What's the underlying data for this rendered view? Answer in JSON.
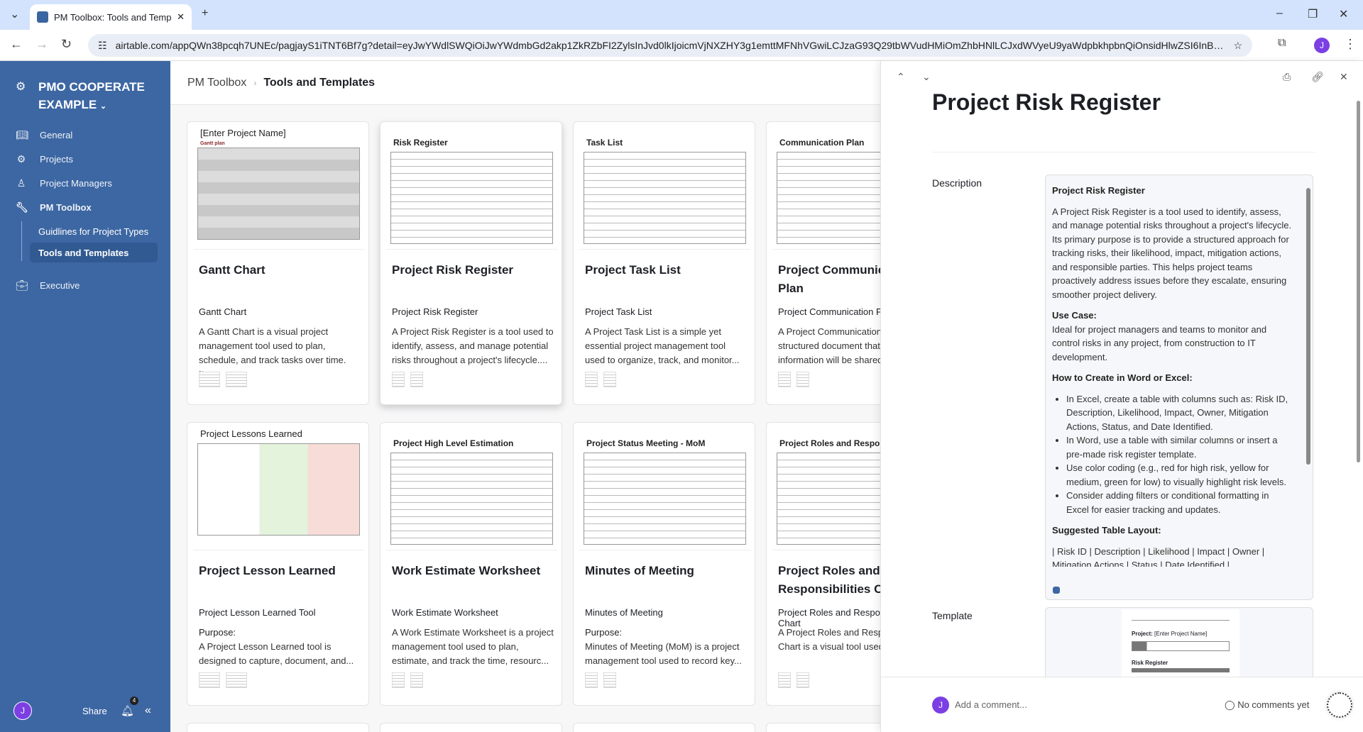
{
  "browser": {
    "tab_title": "PM Toolbox: Tools and Templat",
    "url": "airtable.com/appQWn38pcqh7UNEc/pagjayS1iTNT6Bf7g?detail=eyJwYWdlSWQiOiJwYWdmbGd2akp1ZkRZbFI2ZylsInJvd0lkIjoicmVjNXZHY3g1emttMFNhVGwiLCJzaG93Q29tbWVudHMiOmZhbHNlLCJxdWVyeU9yaWdpbkhpbnQiOnsidHlwZSI6InBhZ2VFbGV...",
    "profile_initial": "J"
  },
  "sidebar": {
    "workspace": "PMO COOPERATE EXAMPLE",
    "items": [
      {
        "label": "General",
        "icon": "book-icon"
      },
      {
        "label": "Projects",
        "icon": "gear-icon"
      },
      {
        "label": "Project Managers",
        "icon": "person-icon"
      },
      {
        "label": "PM Toolbox",
        "icon": "wrench-icon"
      },
      {
        "label": "Executive",
        "icon": "briefcase-icon"
      }
    ],
    "subitems": [
      "Guidlines for Project Types",
      "Tools and Templates"
    ],
    "share": "Share",
    "notification_count": "4",
    "user_initial": "J"
  },
  "breadcrumb": {
    "parent": "PM Toolbox",
    "current": "Tools and Templates"
  },
  "cards": [
    {
      "preview": "[Enter Project Name]",
      "preview_sub": "Gantt plan",
      "title": "Gantt Chart",
      "subtitle": "Gantt Chart",
      "purpose": "",
      "desc": "A Gantt Chart is a visual project management tool used to plan, schedule, and track tasks over time. It..."
    },
    {
      "preview": "Risk Register",
      "title": "Project Risk Register",
      "subtitle": "Project Risk Register",
      "purpose": "",
      "desc": "A Project Risk Register is a tool used to identify, assess, and manage potential risks throughout a project's lifecycle...."
    },
    {
      "preview": "Task List",
      "title": "Project Task List",
      "subtitle": "Project Task List",
      "purpose": "",
      "desc": "A Project Task List is a simple yet essential project management tool used to organize, track, and monitor..."
    },
    {
      "preview": "Communication Plan",
      "title": "Project Communication Plan",
      "subtitle": "Project Communication Plan",
      "purpose": "",
      "desc": "A Project Communication Plan is a structured document that outlines how information will be shared..."
    },
    {
      "preview": "Project Lessons Learned",
      "title": "Project Lesson Learned",
      "subtitle": "Project Lesson Learned Tool",
      "purpose": "Purpose:",
      "desc": "A Project Lesson Learned tool is designed to capture, document, and..."
    },
    {
      "preview": "Project High Level Estimation",
      "title": "Work Estimate Worksheet",
      "subtitle": "Work Estimate Worksheet",
      "purpose": "",
      "desc": "A Work Estimate Worksheet is a project management tool used to plan, estimate, and track the time, resourc..."
    },
    {
      "preview": "Project Status Meeting - MoM",
      "title": "Minutes of Meeting",
      "subtitle": "Minutes of Meeting",
      "purpose": "Purpose:",
      "desc": "Minutes of Meeting (MoM) is a project management tool used to record key..."
    },
    {
      "preview": "Project Roles and Responsibilities",
      "title": "Project Roles and Responsibilities Chart",
      "subtitle": "Project Roles and Responsibilities Chart",
      "purpose": "",
      "desc": "A Project Roles and Responsibilities Chart is a visual tool used..."
    }
  ],
  "detail": {
    "title": "Project Risk Register",
    "description_label": "Description",
    "description": {
      "heading": "Project Risk Register",
      "intro": "A Project Risk Register is a tool used to identify, assess, and manage potential risks throughout a project's lifecycle. Its primary purpose is to provide a structured approach for tracking risks, their likelihood, impact, mitigation actions, and responsible parties. This helps project teams proactively address issues before they escalate, ensuring smoother project delivery.",
      "use_case_heading": "Use Case:",
      "use_case": "Ideal for project managers and teams to monitor and control risks in any project, from construction to IT development.",
      "howto_heading": "How to Create in Word or Excel:",
      "howto": [
        "In Excel, create a table with columns such as: Risk ID, Description, Likelihood, Impact, Owner, Mitigation Actions, Status, and Date Identified.",
        "In Word, use a table with similar columns or insert a pre-made risk register template.",
        "Use color coding (e.g., red for high risk, yellow for medium, green for low) to visually highlight risk levels.",
        "Consider adding filters or conditional formatting in Excel for easier tracking and updates."
      ],
      "layout_heading": "Suggested Table Layout:",
      "layout": "| Risk ID | Description | Likelihood | Impact | Owner | Mitigation Actions | Status | Date Identified |",
      "layout_rule": "|---------|-------------|------------|--------|-------|-------------"
    },
    "template_label": "Template",
    "template_preview": {
      "project": "Project:",
      "project_name": "[Enter Project Name]",
      "section": "Risk Register"
    },
    "comment_placeholder": "Add a comment...",
    "no_comments": "No comments yet",
    "user_initial": "J"
  },
  "colors": {
    "sidebar": "#3d67a3",
    "avatar": "#7b3fe4",
    "tabbar": "#d3e3fd"
  }
}
